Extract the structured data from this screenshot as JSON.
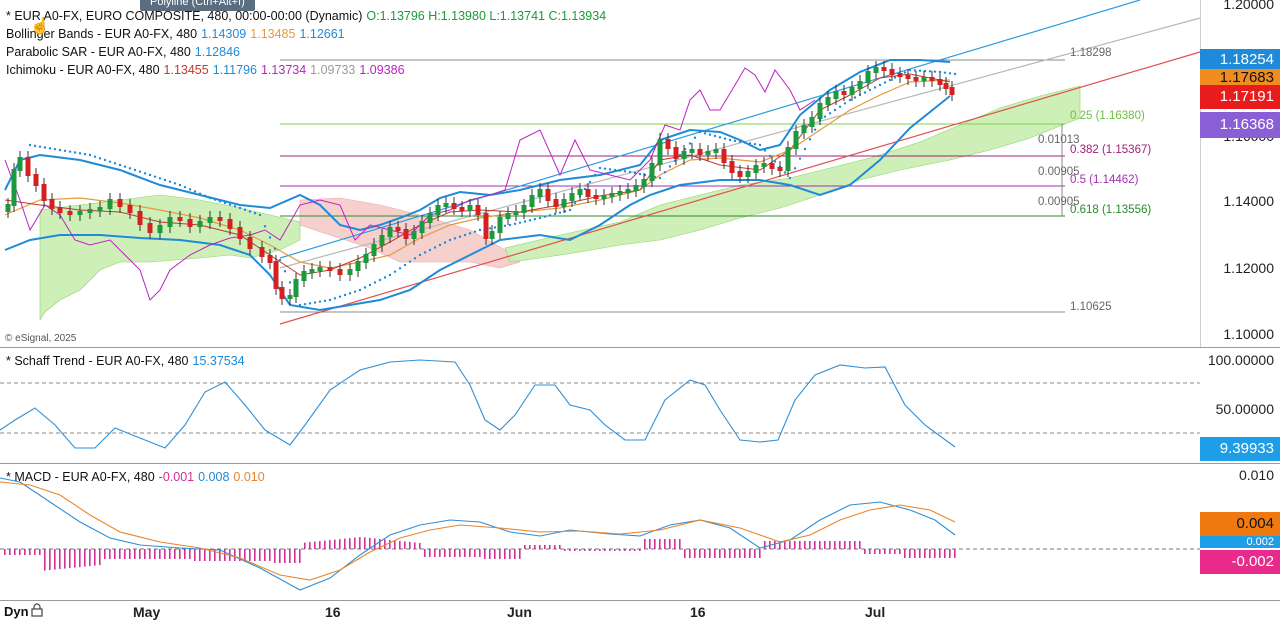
{
  "tooltip": "Polyline (Ctrl+Alt+I)",
  "price_pane": {
    "legend": {
      "main_prefix": "* EUR A0-FX, EURO COMPOSITE, 480, 00:00-00:00 (Dynamic)",
      "ohlc": "O:1.13796 H:1.13980 L:1.13741 C:1.13934",
      "bb_label": "Bollinger Bands - EUR A0-FX, 480",
      "bb_v1": "1.14309",
      "bb_v2": "1.13485",
      "bb_v3": "1.12661",
      "sar_label": "Parabolic SAR - EUR A0-FX, 480",
      "sar_v": "1.12846",
      "ich_label": "Ichimoku - EUR A0-FX, 480",
      "ich_v1": "1.13455",
      "ich_v2": "1.11796",
      "ich_v3": "1.13734",
      "ich_v4": "1.09733",
      "ich_v5": "1.09386"
    },
    "copyright": "© eSignal, 2025",
    "axis_ticks": [
      "1.20000",
      "1.16000",
      "1.14000",
      "1.12000",
      "1.10000"
    ],
    "price_tags": [
      "1.18254",
      "1.17683",
      "1.17191",
      "1.16368"
    ],
    "fib": {
      "top": "1.18298",
      "bottom": "1.10625",
      "l025": "0.25 (1.16380)",
      "l0382": "0.382 (1.15367)",
      "l05": "0.5 (1.14462)",
      "l0618": "0.618 (1.13556)",
      "d1": "0.01013",
      "d2": "0.00905",
      "d3": "0.00905"
    }
  },
  "schaff_pane": {
    "label": "* Schaff Trend - EUR A0-FX, 480",
    "value": "15.37534",
    "axis_ticks": [
      "100.00000",
      "50.00000"
    ],
    "tag": "9.39933"
  },
  "macd_pane": {
    "label": "* MACD - EUR A0-FX, 480",
    "v1": "-0.001",
    "v2": "0.008",
    "v3": "0.010",
    "axis_ticks": [
      "0.010"
    ],
    "tags": [
      "0.004",
      "0.002",
      "-0.002"
    ]
  },
  "bottom": {
    "mode": "Dyn",
    "dates": [
      "May",
      "16",
      "Jun",
      "16",
      "Jul"
    ]
  },
  "colors": {
    "up": "#1a9a3a",
    "down": "#d42020",
    "bb": "#1f8ad8",
    "sar": "#1f8ad8",
    "tenkan": "#c0392b",
    "kijun": "#e39b3c",
    "chikou": "#c020c0",
    "cloud_green": "#c9eeb0",
    "cloud_red": "#f4c8c4",
    "schaff": "#2f8fd6",
    "macd": "#2f8fd6",
    "signal": "#e8862a",
    "hist": "#d0309a"
  }
}
